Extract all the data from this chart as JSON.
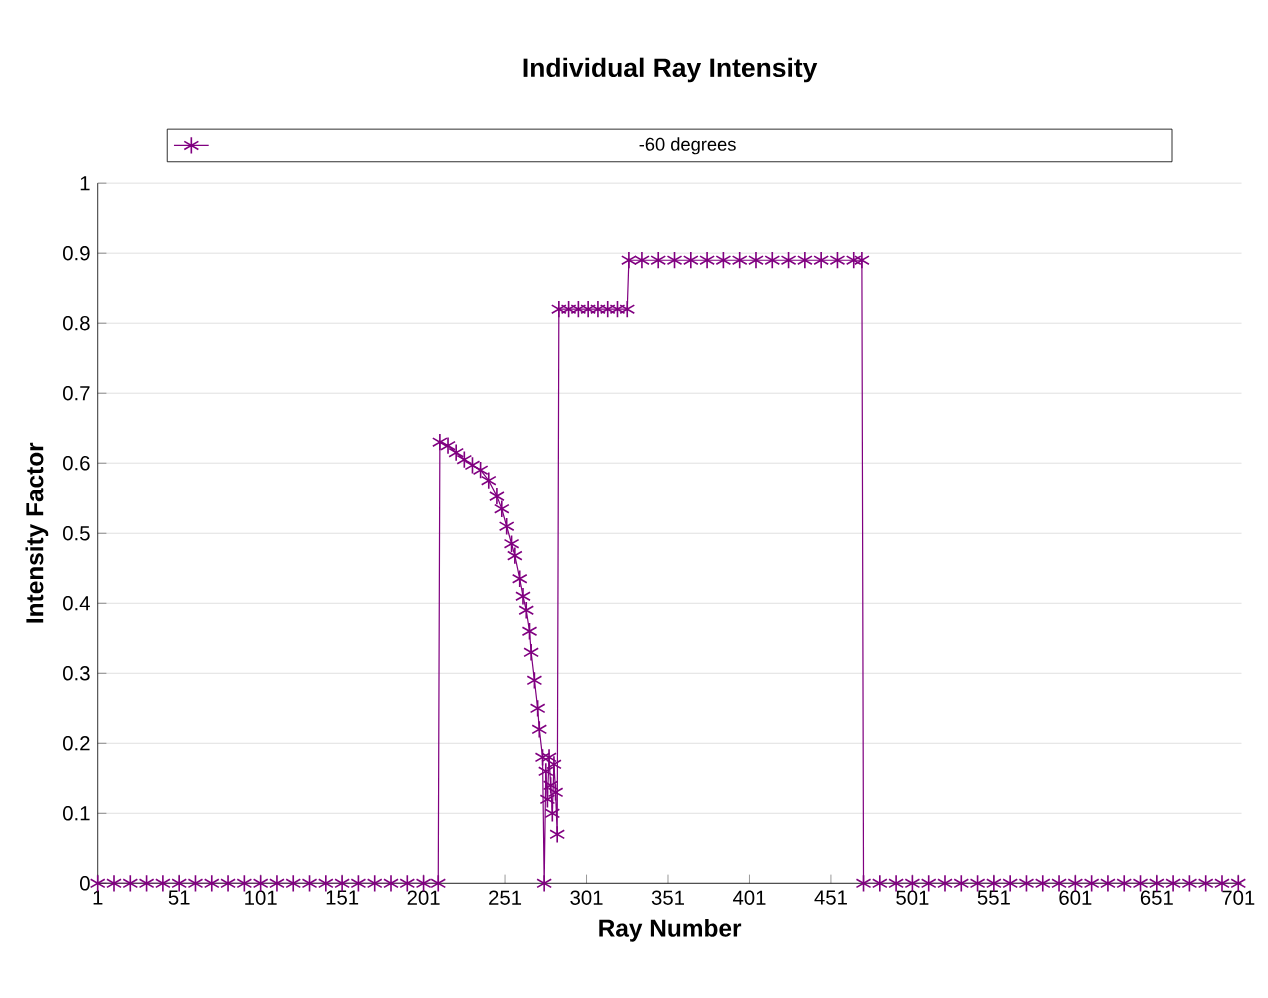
{
  "chart_data": {
    "type": "line",
    "title": "Individual Ray Intensity",
    "xlabel": "Ray Number",
    "ylabel": "Intensity Factor",
    "xlim": [
      1,
      703
    ],
    "xticks": [
      1,
      51,
      101,
      151,
      201,
      251,
      301,
      351,
      401,
      451,
      501,
      551,
      601,
      651,
      701
    ],
    "ylim": [
      0,
      1
    ],
    "yticks": [
      0,
      0.1,
      0.2,
      0.3,
      0.4,
      0.5,
      0.6,
      0.7,
      0.8,
      0.9,
      1
    ],
    "grid": "y",
    "legend": "top",
    "marker": "cross",
    "line_style": "solid",
    "series": [
      {
        "name": "-60 degrees",
        "color": "#800080",
        "x": [
          1,
          11,
          21,
          31,
          41,
          51,
          61,
          71,
          81,
          91,
          101,
          111,
          121,
          131,
          141,
          151,
          161,
          171,
          181,
          191,
          201,
          210,
          211,
          216,
          221,
          226,
          231,
          236,
          241,
          246,
          249,
          252,
          255,
          257,
          260,
          262,
          264,
          266,
          267,
          269,
          271,
          272,
          274,
          275,
          276,
          277,
          278,
          279,
          280,
          281,
          282,
          283,
          284,
          290,
          296,
          302,
          308,
          314,
          320,
          326,
          327,
          335,
          345,
          355,
          365,
          375,
          385,
          395,
          405,
          415,
          425,
          435,
          445,
          455,
          465,
          470,
          471,
          481,
          491,
          501,
          511,
          521,
          531,
          541,
          551,
          561,
          571,
          581,
          591,
          601,
          611,
          621,
          631,
          641,
          651,
          661,
          671,
          681,
          691,
          701
        ],
        "values": [
          0,
          0,
          0,
          0,
          0,
          0,
          0,
          0,
          0,
          0,
          0,
          0,
          0,
          0,
          0,
          0,
          0,
          0,
          0,
          0,
          0,
          0,
          0.63,
          0.625,
          0.615,
          0.605,
          0.597,
          0.59,
          0.575,
          0.553,
          0.535,
          0.51,
          0.485,
          0.468,
          0.435,
          0.41,
          0.39,
          0.36,
          0.33,
          0.29,
          0.25,
          0.22,
          0.18,
          0,
          0.16,
          0.12,
          0.18,
          0.14,
          0.1,
          0.17,
          0.13,
          0.07,
          0.82,
          0.82,
          0.82,
          0.82,
          0.82,
          0.82,
          0.82,
          0.82,
          0.89,
          0.89,
          0.89,
          0.89,
          0.89,
          0.89,
          0.89,
          0.89,
          0.89,
          0.89,
          0.89,
          0.89,
          0.89,
          0.89,
          0.89,
          0.89,
          0,
          0,
          0,
          0,
          0,
          0,
          0,
          0,
          0,
          0,
          0,
          0,
          0,
          0,
          0,
          0,
          0,
          0,
          0,
          0,
          0,
          0,
          0,
          0
        ]
      }
    ]
  }
}
